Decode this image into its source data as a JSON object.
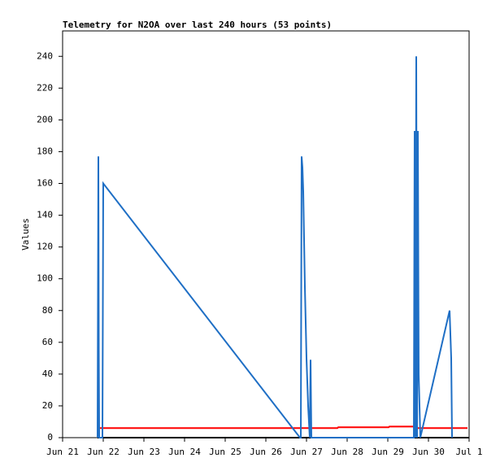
{
  "chart_data": {
    "type": "line",
    "title": "Telemetry for N2OA over last 240 hours (53 points)",
    "y_label": "Values",
    "xlim": [
      0,
      10
    ],
    "xticks": [
      {
        "value": 0,
        "label": "Jun 21"
      },
      {
        "value": 1,
        "label": "Jun 22"
      },
      {
        "value": 2,
        "label": "Jun 23"
      },
      {
        "value": 3,
        "label": "Jun 24"
      },
      {
        "value": 4,
        "label": "Jun 25"
      },
      {
        "value": 5,
        "label": "Jun 26"
      },
      {
        "value": 6,
        "label": "Jun 27"
      },
      {
        "value": 7,
        "label": "Jun 28"
      },
      {
        "value": 8,
        "label": "Jun 29"
      },
      {
        "value": 9,
        "label": "Jun 30"
      },
      {
        "value": 10,
        "label": "Jul 1"
      }
    ],
    "ylim": [
      0,
      256
    ],
    "yticks": [
      0,
      20,
      40,
      60,
      80,
      100,
      120,
      140,
      160,
      180,
      200,
      220,
      240
    ],
    "series": [
      {
        "color": "#000000",
        "x": [
          0.86,
          10
        ],
        "values": [
          0,
          0
        ]
      },
      {
        "color": "#ff0000",
        "x": [
          0.86,
          6.76,
          6.78,
          8.02,
          8.04,
          8.66,
          8.68,
          9.96
        ],
        "values": [
          6,
          6,
          6.5,
          6.5,
          7,
          7,
          6,
          6
        ]
      },
      {
        "color": "#1f6fc5",
        "x": [
          0.86,
          0.88,
          0.89,
          0.9,
          0.98,
          1.0,
          5.84,
          5.86,
          5.88,
          5.9,
          5.92,
          5.96,
          6.0,
          6.04,
          6.08,
          6.1,
          6.12,
          8.64,
          8.66,
          8.68,
          8.7,
          8.72,
          8.74,
          8.76,
          8.8,
          9.52,
          9.56,
          9.58
        ],
        "values": [
          0,
          177,
          56,
          0,
          0,
          160,
          0,
          0,
          177,
          170,
          155,
          95,
          50,
          20,
          0,
          49,
          0,
          0,
          193,
          0,
          240,
          0,
          193,
          40,
          0,
          80,
          50,
          0
        ]
      }
    ]
  }
}
